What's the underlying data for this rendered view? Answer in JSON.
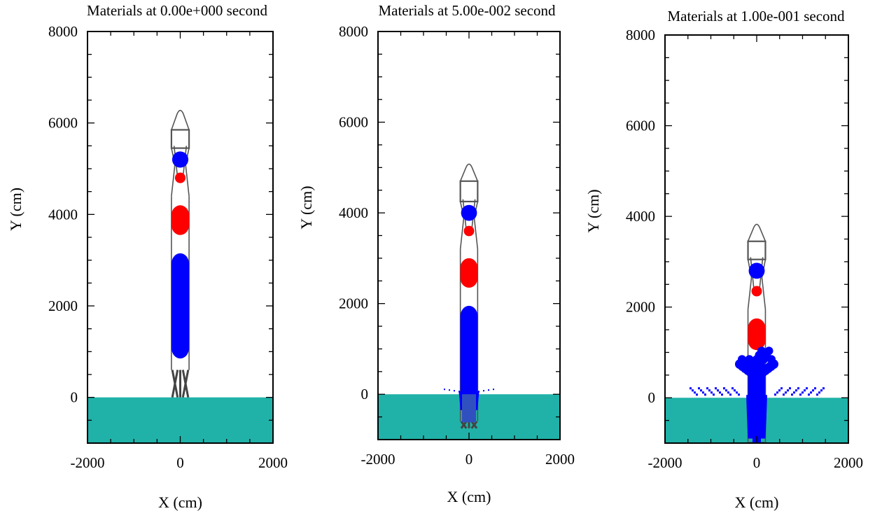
{
  "chart_data": [
    {
      "type": "material-plot",
      "title": "Materials at 0.00e+000 second",
      "xlabel": "X (cm)",
      "ylabel": "Y (cm)",
      "xlim": [
        -2000,
        2000
      ],
      "ylim": [
        -1000,
        8000
      ],
      "x_ticks": [
        "-2000",
        "0",
        "2000"
      ],
      "y_ticks": [
        "0",
        "2000",
        "4000",
        "6000",
        "8000"
      ],
      "rocket": {
        "base_y": 600,
        "nose_y": 6350,
        "width": 380,
        "lower_tank": [
          850,
          3150
        ],
        "upper_tank": [
          3550,
          4200
        ],
        "small_red_y": 4800,
        "small_blue_y": 5200,
        "box": [
          5450,
          5850
        ],
        "legs_bottom": 0
      },
      "spray": 0
    },
    {
      "type": "material-plot",
      "title": "Materials at 5.00e-002 second",
      "xlabel": "X (cm)",
      "ylabel": "Y (cm)",
      "xlim": [
        -2000,
        2000
      ],
      "ylim": [
        -1000,
        8000
      ],
      "x_ticks": [
        "-2000",
        "0",
        "2000"
      ],
      "y_ticks": [
        "0",
        "2000",
        "4000",
        "6000",
        "8000"
      ],
      "rocket": {
        "base_y": -600,
        "nose_y": 5150,
        "width": 380,
        "lower_tank": [
          -350,
          1950
        ],
        "upper_tank": [
          2350,
          3000
        ],
        "small_red_y": 3600,
        "small_blue_y": 4000,
        "box": [
          4250,
          4700
        ],
        "legs_bottom": -750
      },
      "spray": 1
    },
    {
      "type": "material-plot",
      "title": "Materials at 1.00e-001 second",
      "xlabel": "X (cm)",
      "ylabel": "Y (cm)",
      "xlim": [
        -2000,
        2000
      ],
      "ylim": [
        -1000,
        8000
      ],
      "x_ticks": [
        "-2000",
        "0",
        "2000"
      ],
      "y_ticks": [
        "0",
        "2000",
        "4000",
        "6000",
        "8000"
      ],
      "rocket": {
        "base_y": -1000,
        "nose_y": 3900,
        "width": 380,
        "lower_tank": [
          -900,
          900
        ],
        "upper_tank": [
          1050,
          1750
        ],
        "small_red_y": 2350,
        "small_blue_y": 2800,
        "box": [
          3050,
          3450
        ],
        "legs_bottom": -1000
      },
      "spray": 2
    }
  ],
  "colors": {
    "ground": "#20b2a8",
    "blue": "#0000ff",
    "red": "#ff0000",
    "outline": "#555555"
  }
}
